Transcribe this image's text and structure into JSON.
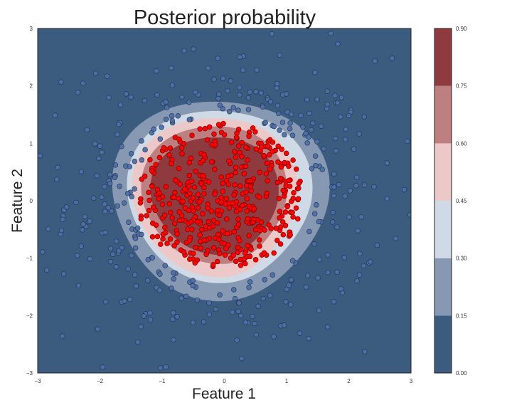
{
  "chart_data": {
    "type": "contour-scatter",
    "title": "Posterior probability",
    "xlabel": "Feature 1",
    "ylabel": "Feature 2",
    "xlim": [
      -3,
      3
    ],
    "ylim": [
      -3,
      3
    ],
    "x_ticks": [
      "−3",
      "−2",
      "−1",
      "0",
      "1",
      "2",
      "3"
    ],
    "y_ticks": [
      "−3",
      "−2",
      "−1",
      "0",
      "1",
      "2",
      "3"
    ],
    "x_tick_values": [
      -3,
      -2,
      -1,
      0,
      1,
      2,
      3
    ],
    "y_tick_values": [
      -3,
      -2,
      -1,
      0,
      1,
      2,
      3
    ],
    "contour": {
      "center": [
        0.0,
        0.05
      ],
      "levels": [
        0.0,
        0.15,
        0.3,
        0.45,
        0.6,
        0.75,
        0.9
      ],
      "level_radii": [
        {
          "level": 0.15,
          "left": 1.82,
          "right": 1.65,
          "top": 1.75,
          "bottom": 1.72
        },
        {
          "level": 0.3,
          "left": 1.58,
          "right": 1.38,
          "top": 1.58,
          "bottom": 1.42
        },
        {
          "level": 0.45,
          "left": 1.5,
          "right": 1.15,
          "top": 1.45,
          "bottom": 1.32
        },
        {
          "level": 0.6,
          "left": 1.35,
          "right": 0.98,
          "top": 1.3,
          "bottom": 1.1
        },
        {
          "level": 0.75,
          "left": 1.2,
          "right": 0.85,
          "top": 1.1,
          "bottom": 0.95
        }
      ],
      "band_colors": [
        "#3b5b7f",
        "#8698b2",
        "#cfdae6",
        "#ecc8c8",
        "#bd7f7f",
        "#8f3a3f"
      ]
    },
    "series": [
      {
        "class": "outer",
        "color": "#4f6faa",
        "count": 340,
        "radius_min": 0.0,
        "radius_max": 3.0
      },
      {
        "class": "inner",
        "color": "#ff0000",
        "count": 420,
        "radius_min": 0.0,
        "radius_max": 1.35
      }
    ],
    "colorbar": {
      "ticks": [
        "0.00",
        "0.15",
        "0.30",
        "0.45",
        "0.60",
        "0.75",
        "0.90"
      ],
      "values": [
        0.0,
        0.15,
        0.3,
        0.45,
        0.6,
        0.75,
        0.9
      ]
    }
  }
}
